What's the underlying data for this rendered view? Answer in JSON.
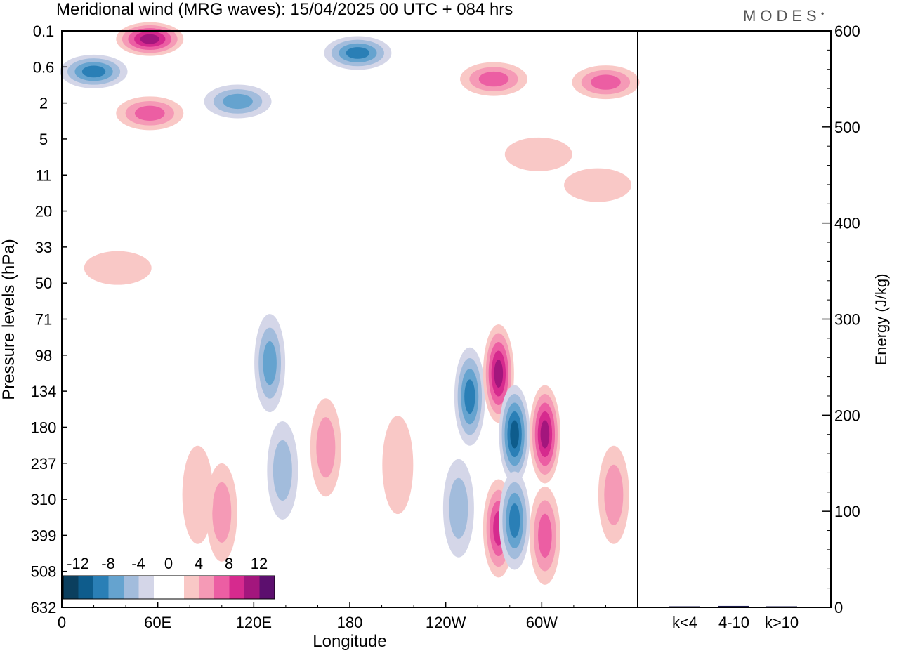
{
  "title": "Meridional wind (MRG waves):  15/04/2025  00 UTC  + 084 hrs",
  "brand": "MODES",
  "colors": {
    "n12": "#0b3f5e",
    "n10": "#0e5c8c",
    "n8": "#2a7fb6",
    "n6": "#65a3cf",
    "n4": "#a2bcdc",
    "n2": "#d4d6e8",
    "p2": "#f9c8c6",
    "p4": "#f59ab6",
    "p6": "#ec5ea3",
    "p8": "#d62a8e",
    "p10": "#a3167d",
    "p12": "#5c0f6e"
  },
  "chart_data": [
    {
      "type": "heatmap",
      "title": "Meridional wind (MRG waves):  15/04/2025  00 UTC  + 084 hrs",
      "xlabel": "Longitude",
      "ylabel": "Pressure levels (hPa)",
      "x_ticks": [
        "0",
        "60E",
        "120E",
        "180",
        "120W",
        "60W"
      ],
      "y_ticks": [
        "0.1",
        "0.6",
        "2",
        "5",
        "11",
        "20",
        "33",
        "50",
        "71",
        "98",
        "134",
        "180",
        "237",
        "310",
        "399",
        "508",
        "632"
      ],
      "colorbar": {
        "labels": [
          "-12",
          "-8",
          "-4",
          "0",
          "4",
          "8",
          "12"
        ],
        "levels": [
          -12,
          -10,
          -8,
          -6,
          -4,
          -2,
          2,
          4,
          6,
          8,
          10,
          12
        ]
      },
      "features": [
        {
          "lon": 55,
          "p": 0.15,
          "v": 10
        },
        {
          "lon": 20,
          "p": 0.7,
          "v": -8
        },
        {
          "lon": 185,
          "p": 0.3,
          "v": -8
        },
        {
          "lon": 270,
          "p": 0.9,
          "v": 6
        },
        {
          "lon": 340,
          "p": 1.0,
          "v": 6
        },
        {
          "lon": 110,
          "p": 1.9,
          "v": -6
        },
        {
          "lon": 55,
          "p": 2.6,
          "v": 6
        },
        {
          "lon": 298,
          "p": 7,
          "v": 3
        },
        {
          "lon": 335,
          "p": 13,
          "v": 2
        },
        {
          "lon": 35,
          "p": 42,
          "v": 3
        },
        {
          "lon": 255,
          "p": 140,
          "v": -8
        },
        {
          "lon": 248,
          "p": 330,
          "v": -4
        },
        {
          "lon": 130,
          "p": 105,
          "v": -6
        },
        {
          "lon": 138,
          "p": 250,
          "v": -4
        },
        {
          "lon": 273,
          "p": 115,
          "v": 10
        },
        {
          "lon": 273,
          "p": 380,
          "v": 8
        },
        {
          "lon": 283,
          "p": 190,
          "v": -10
        },
        {
          "lon": 283,
          "p": 360,
          "v": -8
        },
        {
          "lon": 302,
          "p": 190,
          "v": 10
        },
        {
          "lon": 302,
          "p": 400,
          "v": 6
        },
        {
          "lon": 345,
          "p": 300,
          "v": 4
        },
        {
          "lon": 100,
          "p": 340,
          "v": 4
        },
        {
          "lon": 85,
          "p": 300,
          "v": 2
        },
        {
          "lon": 165,
          "p": 210,
          "v": 4
        },
        {
          "lon": 210,
          "p": 240,
          "v": 3
        }
      ]
    },
    {
      "type": "bar",
      "categories": [
        "k<4",
        "4-10",
        "k>10"
      ],
      "values": [
        0.3,
        1.5,
        0.2
      ],
      "ylabel": "Energy (J/kg)",
      "ylim": [
        0,
        600
      ],
      "y_ticks": [
        "0",
        "100",
        "200",
        "300",
        "400",
        "500",
        "600"
      ]
    }
  ]
}
